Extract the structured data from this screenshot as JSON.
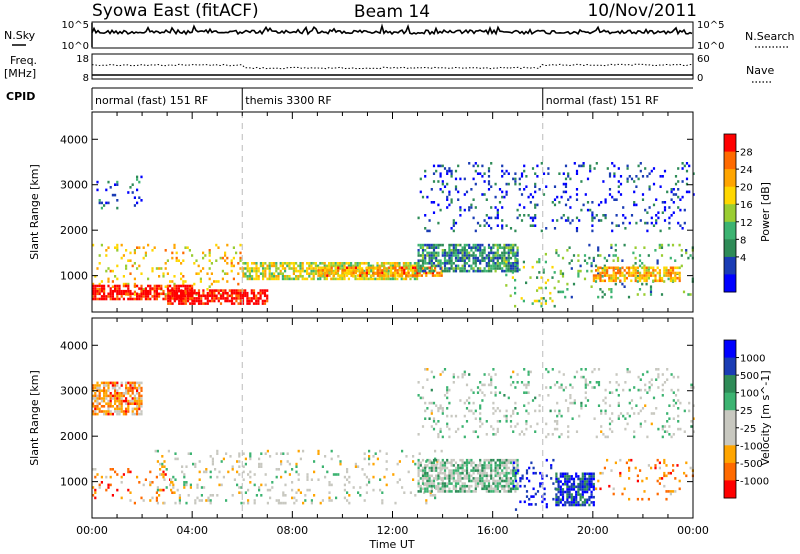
{
  "header": {
    "station": "Syowa East (fitACF)",
    "beam": "Beam 14",
    "date": "10/Nov/2011"
  },
  "strips": {
    "nsky_label": "N.Sky",
    "nsearch_label": "N.Search",
    "nsky_ticks": [
      "10^5",
      "10^0"
    ],
    "nsearch_ticks": [
      "10^5",
      "10^0"
    ],
    "freq_label": "Freq.",
    "freq_unit": "[MHz]",
    "freq_ticks": [
      "18",
      "8"
    ],
    "nave_label": "Nave",
    "nave_ticks": [
      "60",
      "0"
    ],
    "cpid_label": "CPID"
  },
  "cpid_segments": [
    {
      "label": "normal (fast) 151 RF",
      "start_h": 0,
      "end_h": 6
    },
    {
      "label": "themis 3300 RF",
      "start_h": 6,
      "end_h": 18
    },
    {
      "label": "normal (fast) 151 RF",
      "start_h": 18,
      "end_h": 24
    }
  ],
  "chart_data": [
    {
      "type": "heatmap",
      "name": "power",
      "ylabel": "Slant Range [km]",
      "xlabel": "",
      "xlim": [
        0,
        24
      ],
      "ylim": [
        200,
        4600
      ],
      "y_ticks": [
        "1000",
        "2000",
        "3000",
        "4000"
      ],
      "colorbar_label": "Power [dB]",
      "colorbar_ticks": [
        "28",
        "24",
        "20",
        "16",
        "12",
        "8",
        "4"
      ],
      "colors": [
        "#0000ff",
        "#1a3cb4",
        "#2e8b57",
        "#3cb371",
        "#9acd32",
        "#ffd700",
        "#ffa500",
        "#ff6a00",
        "#ff0000"
      ],
      "bands": [
        {
          "t0": 0.0,
          "t1": 6.0,
          "r0": 600,
          "r1": 1700,
          "level": 0.65
        },
        {
          "t0": 0.0,
          "t1": 4.0,
          "r0": 500,
          "r1": 800,
          "level": 0.95
        },
        {
          "t0": 3.0,
          "t1": 7.0,
          "r0": 400,
          "r1": 700,
          "level": 1.0
        },
        {
          "t0": 6.0,
          "t1": 13.0,
          "r0": 900,
          "r1": 1300,
          "level": 0.55
        },
        {
          "t0": 9.0,
          "t1": 14.0,
          "r0": 1000,
          "r1": 1200,
          "level": 0.75
        },
        {
          "t0": 13.0,
          "t1": 17.0,
          "r0": 1100,
          "r1": 1700,
          "level": 0.3
        },
        {
          "t0": 16.5,
          "t1": 18.5,
          "r0": 300,
          "r1": 1500,
          "level": 0.45
        },
        {
          "t0": 18.5,
          "t1": 24.0,
          "r0": 500,
          "r1": 1700,
          "level": 0.35
        },
        {
          "t0": 20.0,
          "t1": 23.5,
          "r0": 900,
          "r1": 1200,
          "level": 0.7
        },
        {
          "t0": 13.0,
          "t1": 24.0,
          "r0": 2000,
          "r1": 3500,
          "level": 0.15
        },
        {
          "t0": 0.0,
          "t1": 2.0,
          "r0": 2500,
          "r1": 3200,
          "level": 0.2
        }
      ]
    },
    {
      "type": "heatmap",
      "name": "velocity",
      "ylabel": "Slant Range [km]",
      "xlabel": "Time UT",
      "xlim": [
        0,
        24
      ],
      "ylim": [
        200,
        4600
      ],
      "x_ticks": [
        "00:00",
        "04:00",
        "08:00",
        "12:00",
        "16:00",
        "20:00",
        "00:00"
      ],
      "y_ticks": [
        "1000",
        "2000",
        "3000",
        "4000"
      ],
      "colorbar_label": "Velocity [m s^-1]",
      "colorbar_ticks": [
        "1000",
        "500",
        "100",
        "25",
        "-25",
        "-100",
        "-500",
        "-1000"
      ],
      "colors": [
        "#ff0000",
        "#ff6a00",
        "#ffa500",
        "#c8c8c0",
        "#c8c8c0",
        "#3cb371",
        "#2e8b57",
        "#1a3cb4",
        "#0000ff"
      ],
      "bands": [
        {
          "t0": 0.0,
          "t1": 3.5,
          "r0": 500,
          "r1": 1300,
          "level": 0.2
        },
        {
          "t0": 2.5,
          "t1": 14.0,
          "r0": 500,
          "r1": 1700,
          "level": 0.45
        },
        {
          "t0": 13.0,
          "t1": 17.0,
          "r0": 800,
          "r1": 1500,
          "level": 0.55
        },
        {
          "t0": 16.8,
          "t1": 18.5,
          "r0": 400,
          "r1": 1500,
          "level": 0.95
        },
        {
          "t0": 18.5,
          "t1": 20.0,
          "r0": 500,
          "r1": 1200,
          "level": 0.85
        },
        {
          "t0": 20.0,
          "t1": 24.0,
          "r0": 600,
          "r1": 1500,
          "level": 0.2
        },
        {
          "t0": 13.0,
          "t1": 24.0,
          "r0": 2000,
          "r1": 3500,
          "level": 0.5
        },
        {
          "t0": 0.0,
          "t1": 2.0,
          "r0": 2500,
          "r1": 3200,
          "level": 0.25
        }
      ]
    }
  ]
}
